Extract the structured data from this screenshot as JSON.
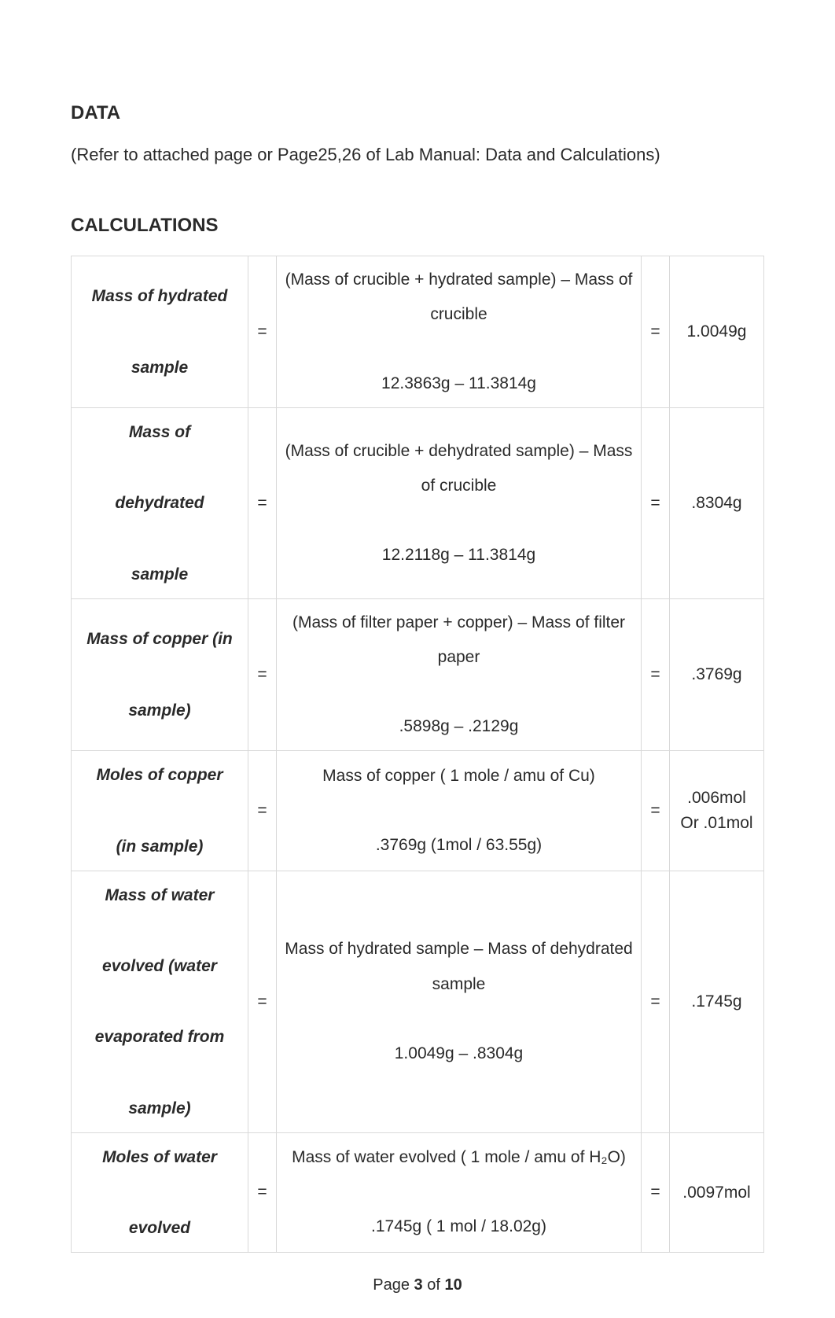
{
  "section1": {
    "heading": "DATA",
    "body": "(Refer to attached page or Page25,26 of Lab Manual: Data and Calculations)"
  },
  "section2": {
    "heading": "CALCULATIONS"
  },
  "rows": [
    {
      "label": "Mass of hydrated\n\nsample",
      "expr": "(Mass of crucible + hydrated sample) – Mass of crucible\n\n12.3863g – 11.3814g",
      "result": "1.0049g"
    },
    {
      "label": "Mass of\n\ndehydrated\n\nsample",
      "expr": "(Mass of crucible + dehydrated sample) – Mass of crucible\n\n12.2118g – 11.3814g",
      "result": ".8304g"
    },
    {
      "label": "Mass of copper (in\n\nsample)",
      "expr": "(Mass of filter paper + copper) – Mass of filter paper\n\n.5898g – .2129g",
      "result": ".3769g"
    },
    {
      "label": "Moles of copper\n\n(in sample)",
      "expr": "Mass of copper ( 1 mole / amu of Cu)\n\n.3769g (1mol / 63.55g)",
      "result": ".006mol Or .01mol"
    },
    {
      "label": "Mass of water\n\nevolved (water\n\nevaporated from\n\nsample)",
      "expr": "Mass of hydrated sample – Mass of dehydrated sample\n\n1.0049g – .8304g",
      "result": ".1745g"
    },
    {
      "label": "Moles of water\n\nevolved",
      "expr": "Mass of water evolved ( 1 mole / amu of H₂O)\n\n.1745g ( 1 mol / 18.02g)",
      "result": ".0097mol"
    }
  ],
  "eq": "=",
  "footer": {
    "prefix": "Page ",
    "n": "3",
    "of": " of ",
    "total": "10"
  },
  "colors": {
    "text": "#2a2a2a",
    "border": "#d9d9d9",
    "background": "#ffffff"
  }
}
